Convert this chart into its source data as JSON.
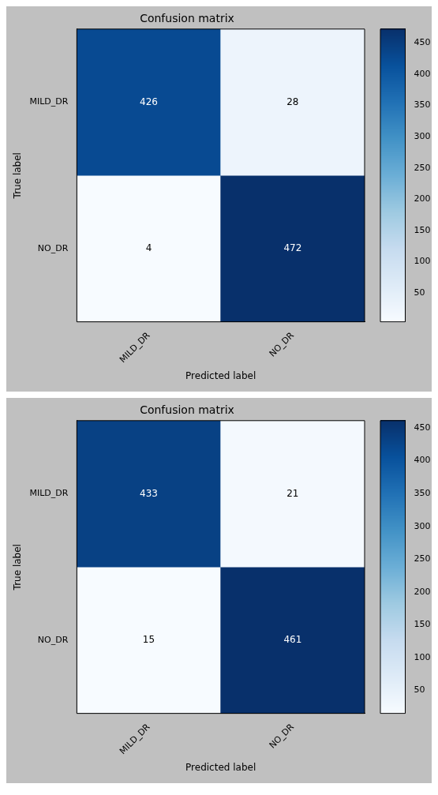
{
  "chart_data": [
    {
      "type": "heatmap",
      "title": "Confusion matrix",
      "xlabel": "Predicted label",
      "ylabel": "True label",
      "categories": [
        "MILD_DR",
        "NO_DR"
      ],
      "y_categories": [
        "MILD_DR",
        "NO_DR"
      ],
      "cells": [
        [
          426,
          28
        ],
        [
          4,
          472
        ]
      ],
      "clim": [
        4,
        472
      ],
      "cticks": [
        50,
        100,
        150,
        200,
        250,
        300,
        350,
        400,
        450
      ],
      "data_labels": true
    },
    {
      "type": "heatmap",
      "title": "Confusion matrix",
      "xlabel": "Predicted label",
      "ylabel": "True label",
      "categories": [
        "MILD_DR",
        "NO_DR"
      ],
      "y_categories": [
        "MILD_DR",
        "NO_DR"
      ],
      "cells": [
        [
          433,
          21
        ],
        [
          15,
          461
        ]
      ],
      "clim": [
        15,
        461
      ],
      "cticks": [
        50,
        100,
        150,
        200,
        250,
        300,
        350,
        400,
        450
      ],
      "data_labels": true
    }
  ]
}
